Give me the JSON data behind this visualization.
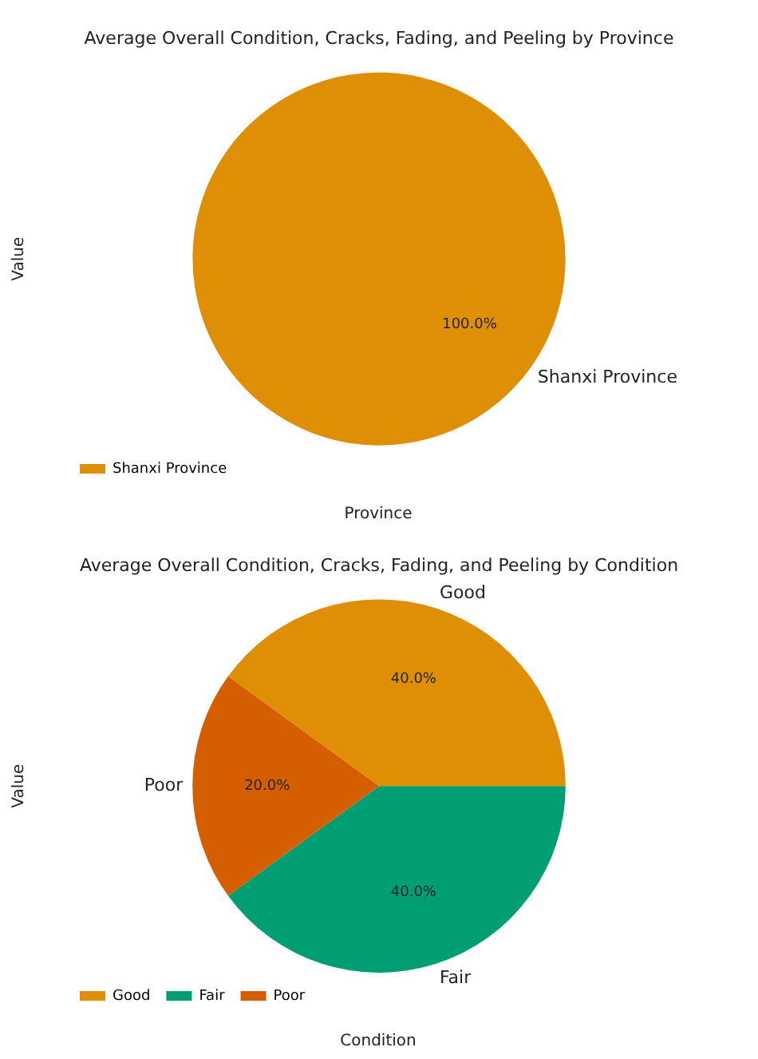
{
  "chart_data": [
    {
      "type": "pie",
      "title": "Average Overall Condition, Cracks, Fading, and Peeling by Province",
      "xlabel": "Province",
      "ylabel": "Value",
      "categories": [
        "Shanxi Province"
      ],
      "values": [
        100
      ],
      "colors": [
        "#de8f05"
      ],
      "value_labels": [
        "100.0%"
      ],
      "legend": "bottom left"
    },
    {
      "type": "pie",
      "title": "Average Overall Condition, Cracks, Fading, and Peeling by Condition",
      "xlabel": "Condition",
      "ylabel": "Value",
      "categories": [
        "Good",
        "Fair",
        "Poor"
      ],
      "values": [
        40,
        40,
        20
      ],
      "colors": [
        "#de8f05",
        "#029e73",
        "#d55e00"
      ],
      "value_labels": [
        "40.0%",
        "40.0%",
        "20.0%"
      ],
      "legend": "bottom left"
    }
  ]
}
